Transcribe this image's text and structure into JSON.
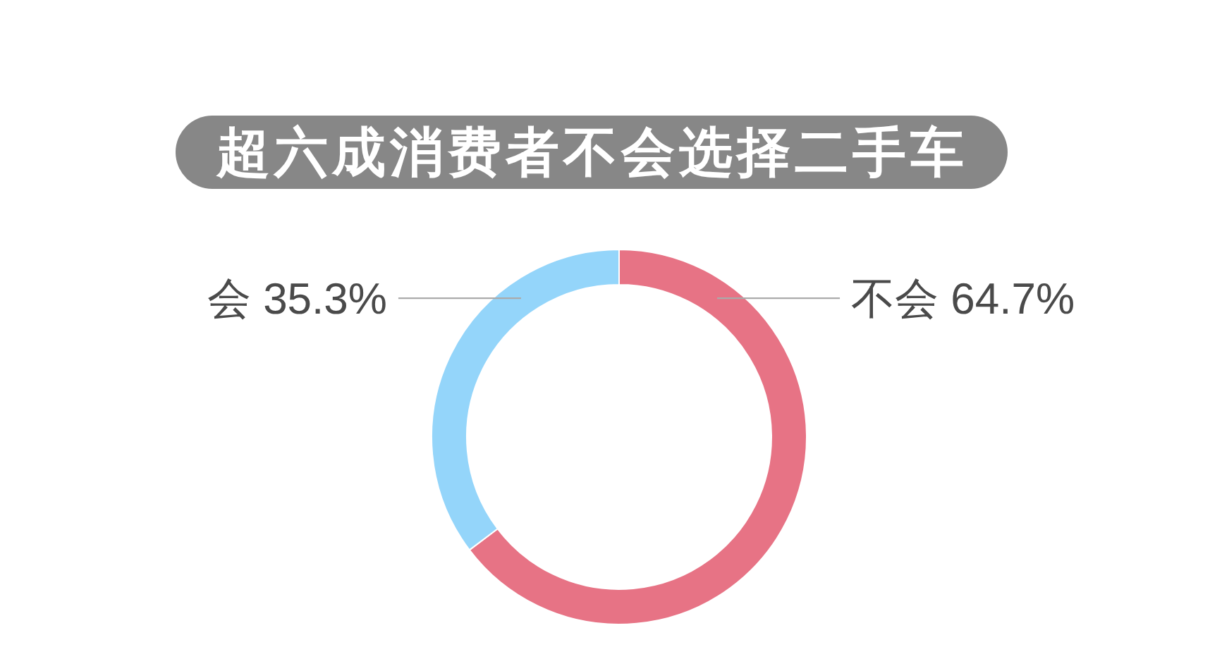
{
  "chart_data": {
    "type": "donut",
    "title": "超六成消费者不会选择二手车",
    "categories": [
      "不会",
      "会"
    ],
    "values": [
      64.7,
      35.3
    ],
    "colors": [
      "#e77385",
      "#94d5fa"
    ],
    "value_labels": [
      "64.7%",
      "35.3%"
    ]
  }
}
